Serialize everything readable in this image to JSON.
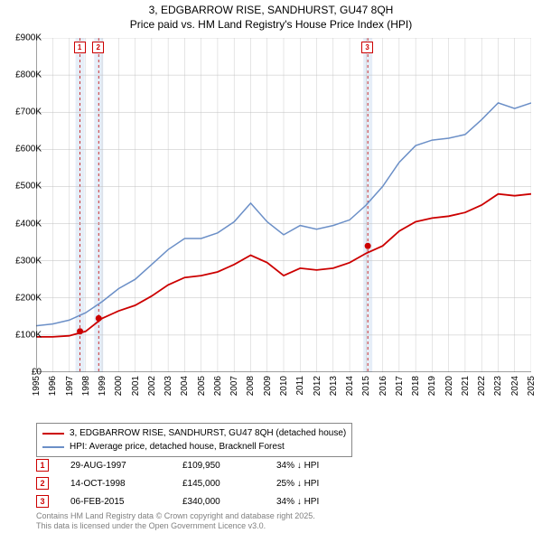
{
  "title_line1": "3, EDGBARROW RISE, SANDHURST, GU47 8QH",
  "title_line2": "Price paid vs. HM Land Registry's House Price Index (HPI)",
  "chart": {
    "type": "line",
    "background_color": "#ffffff",
    "grid_color": "#bfbfbf",
    "axis_color": "#404040",
    "ylim": [
      0,
      900
    ],
    "ytick_step": 100,
    "ytick_prefix": "£",
    "ytick_suffix": "K",
    "x_years": [
      1995,
      1996,
      1997,
      1998,
      1999,
      2000,
      2001,
      2002,
      2003,
      2004,
      2005,
      2006,
      2007,
      2008,
      2009,
      2010,
      2011,
      2012,
      2013,
      2014,
      2015,
      2016,
      2017,
      2018,
      2019,
      2020,
      2021,
      2022,
      2023,
      2024,
      2025
    ],
    "label_fontsize": 10,
    "series": [
      {
        "name": "price_paid",
        "label": "3, EDGBARROW RISE, SANDHURST, GU47 8QH (detached house)",
        "color": "#cc0000",
        "line_width": 1.8,
        "values_k": [
          95,
          95,
          98,
          110,
          145,
          165,
          180,
          205,
          235,
          255,
          260,
          270,
          290,
          315,
          295,
          260,
          280,
          275,
          280,
          295,
          320,
          340,
          380,
          405,
          415,
          420,
          430,
          450,
          480,
          475,
          480
        ]
      },
      {
        "name": "hpi",
        "label": "HPI: Average price, detached house, Bracknell Forest",
        "color": "#6b8fc7",
        "line_width": 1.5,
        "values_k": [
          125,
          130,
          140,
          160,
          190,
          225,
          250,
          290,
          330,
          360,
          360,
          375,
          405,
          455,
          405,
          370,
          395,
          385,
          395,
          410,
          450,
          500,
          565,
          610,
          625,
          630,
          640,
          680,
          725,
          710,
          725
        ]
      }
    ],
    "sale_markers": [
      {
        "badge": "1",
        "year": 1997.66,
        "value_k": 110
      },
      {
        "badge": "2",
        "year": 1998.79,
        "value_k": 145
      },
      {
        "badge": "3",
        "year": 2015.1,
        "value_k": 340
      }
    ],
    "marker_fill": "#cc0000",
    "marker_radius": 3.5,
    "highlight_band_color": "#e6eef8",
    "highlight_dash_color": "#c00000"
  },
  "legend": {
    "border_color": "#888888"
  },
  "transactions": [
    {
      "badge": "1",
      "date": "29-AUG-1997",
      "price": "£109,950",
      "delta": "34% ↓ HPI"
    },
    {
      "badge": "2",
      "date": "14-OCT-1998",
      "price": "£145,000",
      "delta": "25% ↓ HPI"
    },
    {
      "badge": "3",
      "date": "06-FEB-2015",
      "price": "£340,000",
      "delta": "34% ↓ HPI"
    }
  ],
  "footer_line1": "Contains HM Land Registry data © Crown copyright and database right 2025.",
  "footer_line2": "This data is licensed under the Open Government Licence v3.0."
}
